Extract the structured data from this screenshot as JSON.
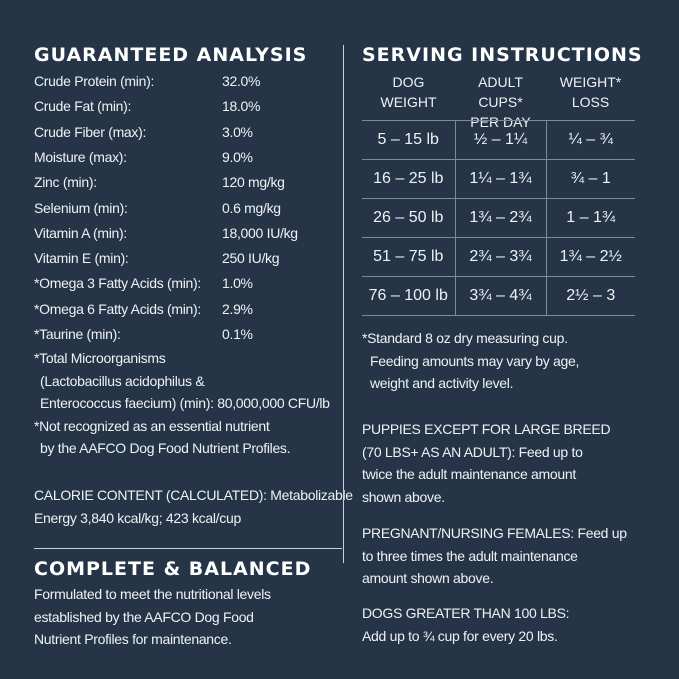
{
  "analysis": {
    "title": "GUARANTEED ANALYSIS",
    "rows": [
      {
        "label": "Crude Protein (min):",
        "value": "32.0%"
      },
      {
        "label": "Crude Fat (min):",
        "value": "18.0%"
      },
      {
        "label": "Crude Fiber (max):",
        "value": "3.0%"
      },
      {
        "label": "Moisture (max):",
        "value": "9.0%"
      },
      {
        "label": "Zinc (min):",
        "value": "120 mg/kg"
      },
      {
        "label": "Selenium (min):",
        "value": "0.6 mg/kg"
      },
      {
        "label": "Vitamin A (min):",
        "value": "18,000 IU/kg"
      },
      {
        "label": "Vitamin E (min):",
        "value": "250 IU/kg"
      },
      {
        "label": "*Omega 3 Fatty Acids (min):",
        "value": "1.0%"
      },
      {
        "label": "*Omega 6 Fatty Acids (min):",
        "value": "2.9%"
      },
      {
        "label": "*Taurine (min):",
        "value": "0.1%"
      }
    ],
    "micro_1": "*Total Microorganisms",
    "micro_2": "(Lactobacillus acidophilus &",
    "micro_3": "Enterococcus faecium) (min): 80,000,000 CFU/lb",
    "note_1": "*Not recognized as an essential nutrient",
    "note_2": "by the AAFCO Dog Food Nutrient Profiles.",
    "calorie_1": "CALORIE CONTENT (CALCULATED): Metabolizable",
    "calorie_2": "Energy 3,840 kcal/kg; 423 kcal/cup"
  },
  "balanced": {
    "title": "COMPLETE & BALANCED",
    "line_1": "Formulated to meet the nutritional levels",
    "line_2": "established by the AAFCO Dog Food",
    "line_3": "Nutrient Profiles for maintenance."
  },
  "serving": {
    "title": "SERVING INSTRUCTIONS",
    "headers": [
      [
        "DOG",
        "WEIGHT"
      ],
      [
        "ADULT CUPS*",
        "PER DAY"
      ],
      [
        "WEIGHT*",
        "LOSS"
      ]
    ],
    "rows": [
      [
        "5 – 15 lb",
        "½ – 1¼",
        "¼ – ¾"
      ],
      [
        "16 – 25 lb",
        "1¼ – 1¾",
        "¾ – 1"
      ],
      [
        "26 – 50 lb",
        "1¾ – 2¾",
        "1 – 1¾"
      ],
      [
        "51 – 75 lb",
        "2¾ – 3¾",
        "1¾ – 2½"
      ],
      [
        "76 – 100 lb",
        "3¾ – 4¾",
        "2½ – 3"
      ]
    ],
    "cup_1": "*Standard 8 oz dry measuring cup.",
    "cup_2": "Feeding amounts may vary by age,",
    "cup_3": "weight and activity level.",
    "puppies": [
      "PUPPIES EXCEPT FOR LARGE BREED",
      "(70 LBS+ AS AN ADULT): Feed up to",
      "twice the adult maintenance amount",
      "shown above."
    ],
    "pregnant": [
      "PREGNANT/NURSING FEMALES: Feed up",
      "to three times the adult maintenance",
      "amount shown above."
    ],
    "large": [
      "DOGS GREATER THAN 100 LBS:",
      "Add up to ¾ cup for every 20 lbs."
    ]
  }
}
